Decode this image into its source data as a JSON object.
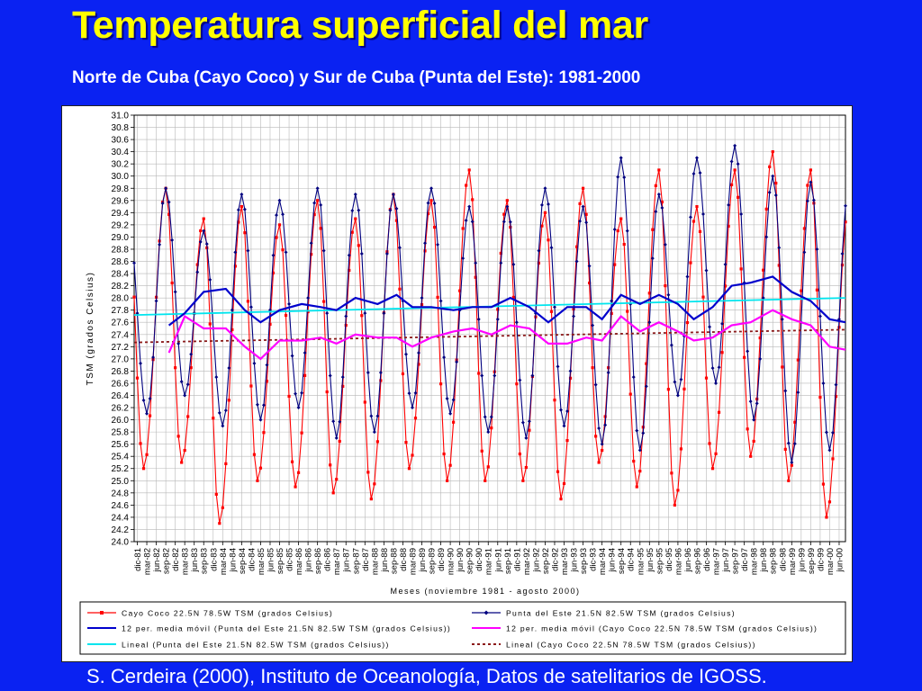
{
  "title": "Temperatura superficial del mar",
  "subtitle": "Norte de Cuba (Cayo Coco) y Sur de Cuba (Punta del Este): 1981-2000",
  "footer": "S. Cerdeira (2000), Instituto de Oceanología,  Datos de satelitarios de IGOSS.",
  "colors": {
    "background": "#0a22f2",
    "title": "#ffff00",
    "cayo_coco": "#ff0000",
    "punta_del_este": "#00007f",
    "ma_punta": "#0000cc",
    "ma_cayo": "#ff00ff",
    "linear_punta": "#00e5ee",
    "linear_cayo": "#8b1a1a"
  },
  "chart_data": {
    "type": "line",
    "ylabel": "TSM (grados Celsius)",
    "xlabel": "Meses (noviembre 1981 - agosto 2000)",
    "ylim": [
      24.0,
      31.0
    ],
    "ytick_step": 0.2,
    "yticks": [
      "24.0",
      "24.2",
      "24.4",
      "24.6",
      "24.8",
      "25.0",
      "25.2",
      "25.4",
      "25.6",
      "25.8",
      "26.0",
      "26.2",
      "26.4",
      "26.6",
      "26.8",
      "27.0",
      "27.2",
      "27.4",
      "27.6",
      "27.8",
      "28.0",
      "28.2",
      "28.4",
      "28.6",
      "28.8",
      "29.0",
      "29.2",
      "29.4",
      "29.6",
      "29.8",
      "30.0",
      "30.2",
      "30.4",
      "30.6",
      "30.8",
      "31.0"
    ],
    "x_start": "1981-11",
    "x_end": "2000-08",
    "xtick_labels": [
      "dic-81",
      "mar-82",
      "jun-82",
      "sep-82",
      "dic-82",
      "mar-83",
      "jun-83",
      "sep-83",
      "dic-83",
      "mar-84",
      "jun-84",
      "sep-84",
      "dic-84",
      "mar-85",
      "jun-85",
      "sep-85",
      "dic-85",
      "mar-86",
      "jun-86",
      "sep-86",
      "dic-86",
      "mar-87",
      "jun-87",
      "sep-87",
      "dic-87",
      "mar-88",
      "jun-88",
      "sep-88",
      "dic-88",
      "mar-89",
      "jun-89",
      "sep-89",
      "dic-89",
      "mar-90",
      "jun-90",
      "sep-90",
      "dic-90",
      "mar-91",
      "jun-91",
      "sep-91",
      "dic-91",
      "mar-92",
      "jun-92",
      "sep-92",
      "dic-92",
      "mar-93",
      "jun-93",
      "sep-93",
      "dic-93",
      "mar-94",
      "jun-94",
      "sep-94",
      "dic-94",
      "mar-95",
      "jun-95",
      "sep-95",
      "dic-95",
      "mar-96",
      "jun-96",
      "sep-96",
      "dic-96",
      "mar-97",
      "jun-97",
      "sep-97",
      "dic-97",
      "mar-98",
      "jun-98",
      "sep-98",
      "dic-98",
      "mar-99",
      "jun-99",
      "sep-99",
      "dic-99",
      "mar-00",
      "jun-00"
    ],
    "grid": true,
    "legend_position": "bottom",
    "series": [
      {
        "name": "Cayo Coco 22.5N 78.5W TSM (grados Celsius)",
        "style": "line-square",
        "color": "#ff0000",
        "annual_peaks": [
          29.5,
          29.8,
          29.3,
          29.5,
          29.2,
          29.6,
          29.3,
          29.7,
          29.6,
          30.1,
          29.6,
          29.4,
          29.8,
          29.3,
          30.1,
          29.5,
          30.1,
          30.4,
          30.1,
          29.5
        ],
        "annual_troughs": [
          25.1,
          25.2,
          25.3,
          24.3,
          25.0,
          24.9,
          24.8,
          24.7,
          25.2,
          25.0,
          25.0,
          25.0,
          24.7,
          25.3,
          24.9,
          24.6,
          25.2,
          25.4,
          25.0,
          24.4
        ]
      },
      {
        "name": "Punta del Este 21.5N 82.5W TSM (grados Celsius)",
        "style": "line-diamond",
        "color": "#00007f",
        "annual_peaks": [
          29.4,
          29.8,
          29.1,
          29.7,
          29.6,
          29.8,
          29.7,
          29.7,
          29.8,
          29.5,
          29.5,
          29.8,
          29.5,
          30.3,
          29.7,
          30.3,
          30.5,
          30.0,
          29.9,
          29.8
        ],
        "annual_troughs": [
          26.2,
          26.1,
          26.4,
          25.9,
          26.0,
          26.2,
          25.7,
          25.8,
          26.2,
          26.1,
          25.8,
          25.7,
          25.9,
          25.6,
          25.5,
          26.4,
          26.6,
          26.0,
          25.3,
          25.5
        ]
      },
      {
        "name": "12 per. media móvil (Punta del Este 21.5N 82.5W TSM (grados Celsius))",
        "style": "line",
        "color": "#0000cc",
        "points": [
          [
            "1982-10",
            27.55
          ],
          [
            "1983-03",
            27.75
          ],
          [
            "1983-09",
            28.1
          ],
          [
            "1984-04",
            28.15
          ],
          [
            "1984-10",
            27.8
          ],
          [
            "1985-03",
            27.6
          ],
          [
            "1985-09",
            27.8
          ],
          [
            "1986-04",
            27.9
          ],
          [
            "1986-10",
            27.85
          ],
          [
            "1987-03",
            27.8
          ],
          [
            "1987-09",
            28.0
          ],
          [
            "1988-04",
            27.9
          ],
          [
            "1988-10",
            28.05
          ],
          [
            "1989-03",
            27.85
          ],
          [
            "1989-09",
            27.85
          ],
          [
            "1990-04",
            27.8
          ],
          [
            "1990-10",
            27.85
          ],
          [
            "1991-04",
            27.85
          ],
          [
            "1991-10",
            28.0
          ],
          [
            "1992-04",
            27.85
          ],
          [
            "1992-10",
            27.6
          ],
          [
            "1993-04",
            27.85
          ],
          [
            "1993-10",
            27.85
          ],
          [
            "1994-03",
            27.65
          ],
          [
            "1994-09",
            28.05
          ],
          [
            "1995-03",
            27.9
          ],
          [
            "1995-09",
            28.05
          ],
          [
            "1996-03",
            27.9
          ],
          [
            "1996-08",
            27.65
          ],
          [
            "1997-02",
            27.85
          ],
          [
            "1997-08",
            28.2
          ],
          [
            "1998-02",
            28.25
          ],
          [
            "1998-09",
            28.35
          ],
          [
            "1999-03",
            28.1
          ],
          [
            "1999-09",
            27.95
          ],
          [
            "2000-03",
            27.65
          ],
          [
            "2000-08",
            27.6
          ]
        ]
      },
      {
        "name": "12 per. media móvil (Cayo Coco 22.5N 78.5W TSM (grados Celsius))",
        "style": "line",
        "color": "#ff00ff",
        "points": [
          [
            "1982-10",
            27.1
          ],
          [
            "1983-03",
            27.7
          ],
          [
            "1983-09",
            27.5
          ],
          [
            "1984-04",
            27.5
          ],
          [
            "1984-10",
            27.2
          ],
          [
            "1985-03",
            27.0
          ],
          [
            "1985-09",
            27.3
          ],
          [
            "1986-04",
            27.3
          ],
          [
            "1986-10",
            27.35
          ],
          [
            "1987-03",
            27.25
          ],
          [
            "1987-09",
            27.4
          ],
          [
            "1988-04",
            27.35
          ],
          [
            "1988-10",
            27.35
          ],
          [
            "1989-03",
            27.2
          ],
          [
            "1989-09",
            27.35
          ],
          [
            "1990-04",
            27.45
          ],
          [
            "1990-10",
            27.5
          ],
          [
            "1991-04",
            27.4
          ],
          [
            "1991-10",
            27.55
          ],
          [
            "1992-04",
            27.5
          ],
          [
            "1992-10",
            27.25
          ],
          [
            "1993-04",
            27.25
          ],
          [
            "1993-10",
            27.35
          ],
          [
            "1994-03",
            27.3
          ],
          [
            "1994-09",
            27.7
          ],
          [
            "1995-03",
            27.45
          ],
          [
            "1995-09",
            27.6
          ],
          [
            "1996-03",
            27.45
          ],
          [
            "1996-08",
            27.3
          ],
          [
            "1997-02",
            27.35
          ],
          [
            "1997-08",
            27.55
          ],
          [
            "1998-02",
            27.6
          ],
          [
            "1998-09",
            27.8
          ],
          [
            "1999-03",
            27.65
          ],
          [
            "1999-09",
            27.55
          ],
          [
            "2000-03",
            27.2
          ],
          [
            "2000-08",
            27.15
          ]
        ]
      },
      {
        "name": "Lineal (Punta del Este 21.5N 82.5W TSM (grados Celsius))",
        "style": "line",
        "color": "#00e5ee",
        "points": [
          [
            "1981-11",
            27.72
          ],
          [
            "2000-08",
            28.0
          ]
        ]
      },
      {
        "name": "Lineal (Cayo Coco 22.5N 78.5W TSM (grados Celsius))",
        "style": "dashed",
        "color": "#8b1a1a",
        "points": [
          [
            "1981-11",
            27.27
          ],
          [
            "2000-08",
            27.48
          ]
        ]
      }
    ]
  }
}
